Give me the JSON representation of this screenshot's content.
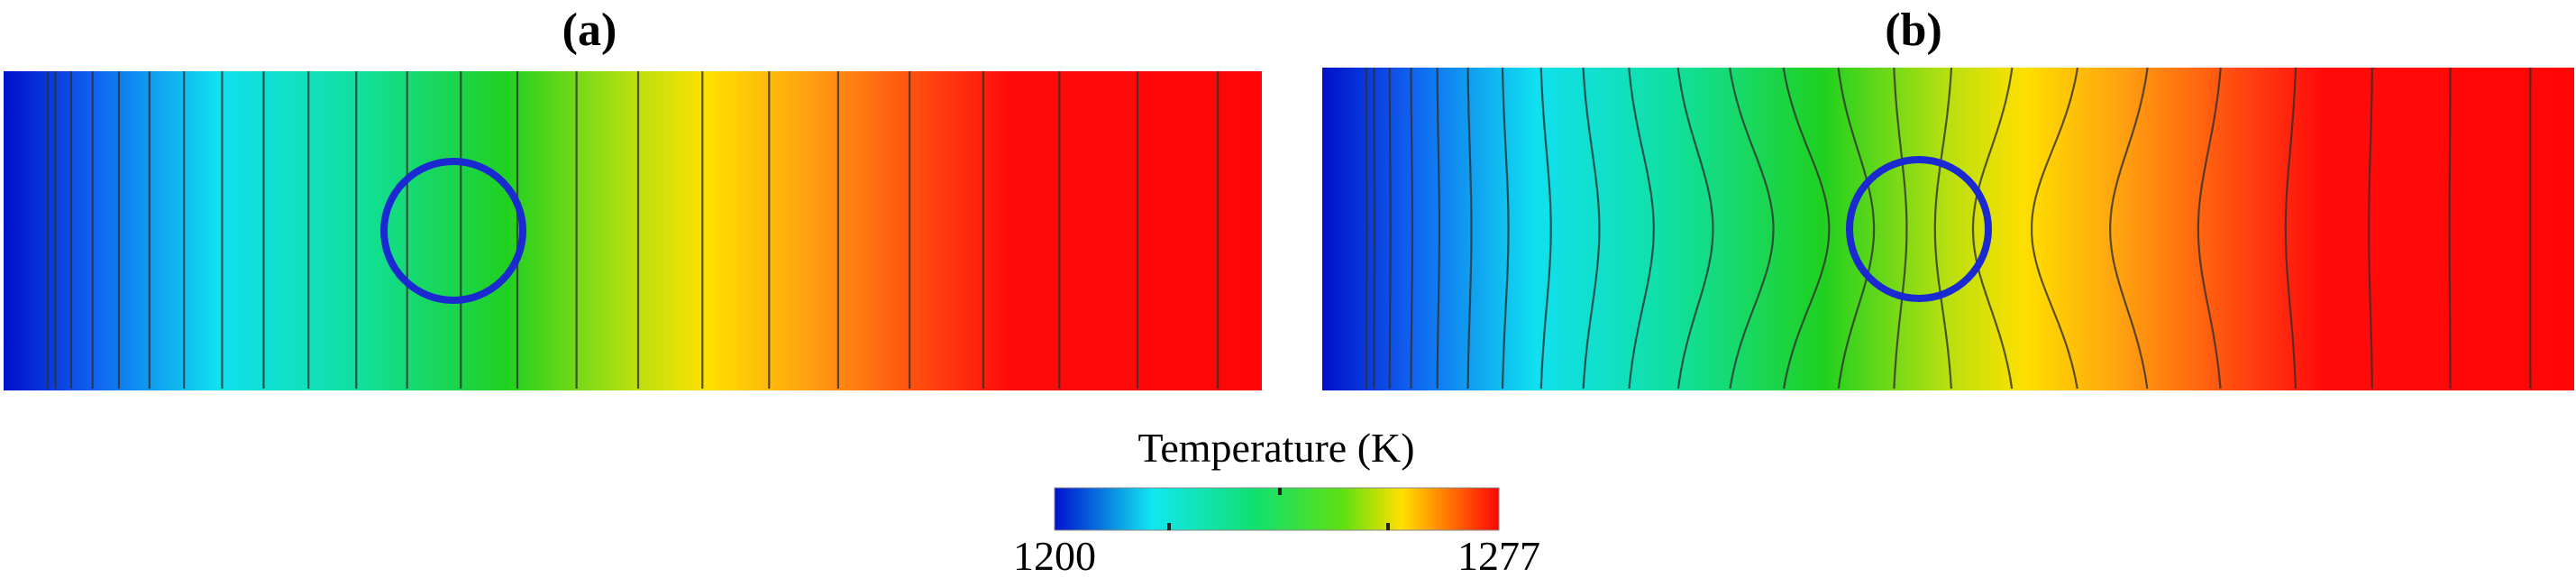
{
  "panels": [
    {
      "label": "(a)"
    },
    {
      "label": "(b)"
    }
  ],
  "colorbar": {
    "title": "Temperature (K)",
    "min": 1200,
    "max": 1277
  }
}
